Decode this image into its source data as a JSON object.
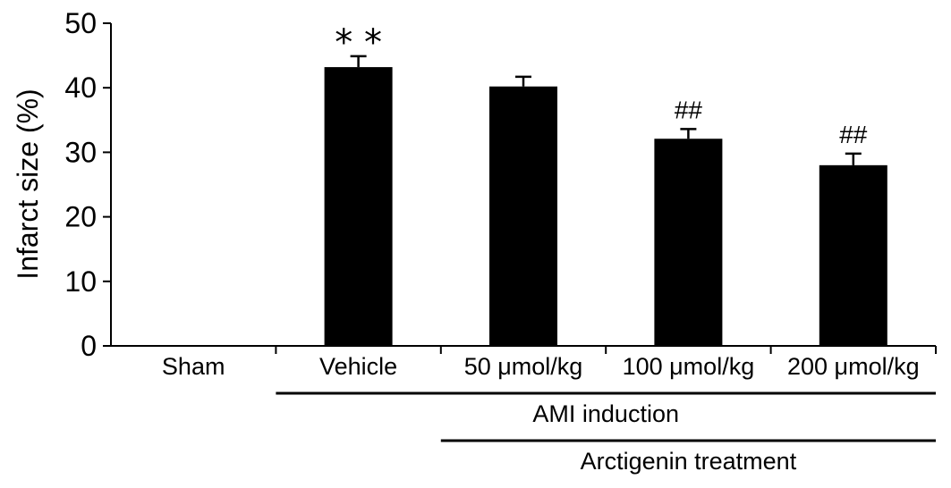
{
  "chart_data": {
    "type": "bar",
    "title": "",
    "xlabel": "",
    "ylabel": "Infarct size (%)",
    "ylim": [
      0,
      50
    ],
    "yticks": [
      0,
      10,
      20,
      30,
      40,
      50
    ],
    "categories": [
      "Sham",
      "Vehicle",
      "50 μmol/kg",
      "100 μmol/kg",
      "200 μmol/kg"
    ],
    "values": [
      0,
      43.2,
      40.2,
      32.1,
      28.0
    ],
    "errors": [
      0,
      1.7,
      1.5,
      1.5,
      1.8
    ],
    "annotations": [
      "",
      "**",
      "",
      "##",
      "##"
    ],
    "bar_color": "#000000",
    "grid": false,
    "groups": [
      {
        "label": "AMI induction",
        "from": "Vehicle",
        "to": "200 μmol/kg"
      },
      {
        "label": "Arctigenin treatment",
        "from": "50 μmol/kg",
        "to": "200 μmol/kg"
      }
    ]
  }
}
